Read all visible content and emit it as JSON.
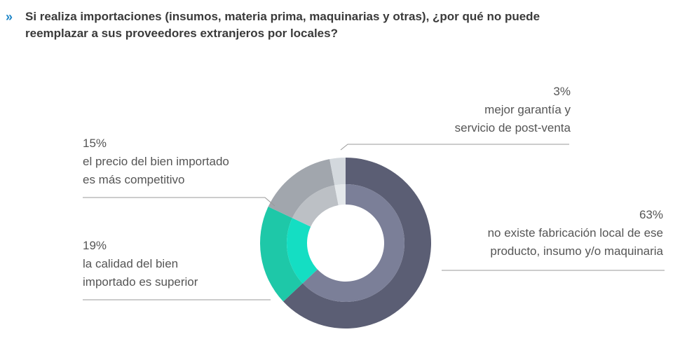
{
  "header": {
    "chevron": "»",
    "question_line1": "Si realiza importaciones (insumos, materia prima, maquinarias y otras), ¿por qué no puede",
    "question_line2": "reemplazar a sus proveedores extranjeros por locales?"
  },
  "labels": {
    "l3": {
      "pct": "3%",
      "line1": "mejor garantía y",
      "line2": "servicio de post-venta"
    },
    "l15": {
      "pct": "15%",
      "line1": "el precio del bien importado",
      "line2": "es más competitivo"
    },
    "l19": {
      "pct": "19%",
      "line1": "la calidad del bien",
      "line2": "importado es superior"
    },
    "l63": {
      "pct": "63%",
      "line1": "no existe fabricación local de ese",
      "line2": "producto, insumo y/o maquinaria"
    }
  },
  "chart_data": {
    "type": "pie",
    "title": "",
    "slices": [
      {
        "label": "no existe fabricación local de ese producto, insumo y/o maquinaria",
        "value": 63,
        "outer_color": "#5b5e74",
        "inner_color": "#7b7f98"
      },
      {
        "label": "la calidad del bien importado es superior",
        "value": 19,
        "outer_color": "#1ec8a8",
        "inner_color": "#14dec3"
      },
      {
        "label": "el precio del bien importado es más competitivo",
        "value": 15,
        "outer_color": "#a1a6ad",
        "inner_color": "#bcc0c5"
      },
      {
        "label": "mejor garantía y servicio de post-venta",
        "value": 3,
        "outer_color": "#d3d8dd",
        "inner_color": "#e4e8eb"
      }
    ],
    "donut": true,
    "legend": "none"
  }
}
